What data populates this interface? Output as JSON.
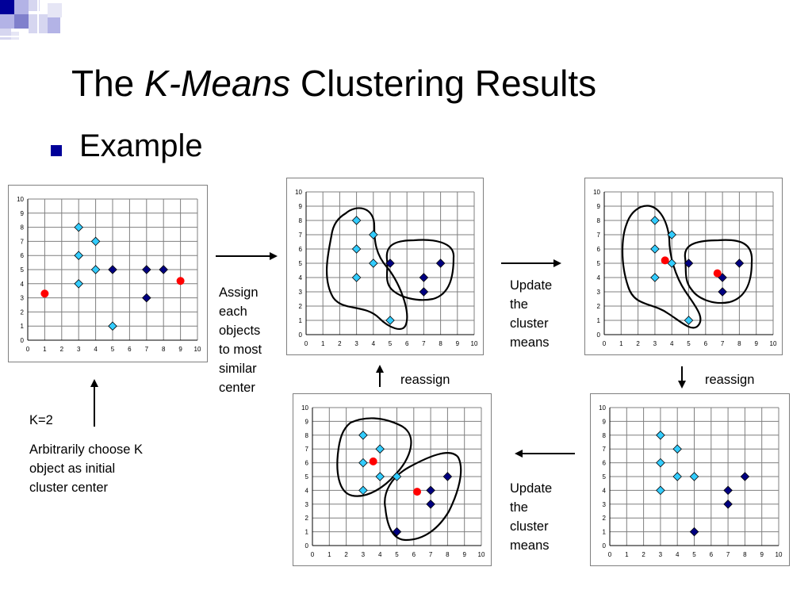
{
  "slide": {
    "title_prefix": "The ",
    "title_italic": "K-Means",
    "title_suffix": " Clustering Results",
    "bullet": "Example"
  },
  "labels": {
    "assign": [
      "Assign",
      "each",
      "objects",
      "to most",
      "similar",
      "center"
    ],
    "update1": [
      "Update",
      "the",
      "cluster",
      "means"
    ],
    "update2": [
      "Update",
      "the",
      "cluster",
      "means"
    ],
    "reassign1": "reassign",
    "reassign2": "reassign",
    "k": "K=2",
    "initial": [
      "Arbitrarily choose K",
      "object as initial",
      "cluster center"
    ]
  },
  "colors": {
    "cluster_a": "#33ccff",
    "cluster_b": "#000080",
    "center": "#ff0000",
    "bullet": "#000099"
  },
  "chart_data": [
    {
      "type": "scatter",
      "xlim": [
        0,
        10
      ],
      "ylim": [
        0,
        10
      ],
      "ticks": [
        0,
        1,
        2,
        3,
        4,
        5,
        6,
        7,
        8,
        9,
        10
      ],
      "grid": true,
      "points_a": [
        [
          3,
          8
        ],
        [
          3,
          6
        ],
        [
          3,
          4
        ],
        [
          4,
          7
        ],
        [
          4,
          5
        ],
        [
          5,
          1
        ]
      ],
      "points_b": [
        [
          5,
          5
        ],
        [
          7,
          5
        ],
        [
          7,
          3
        ],
        [
          8,
          5
        ]
      ],
      "centers": [
        [
          1,
          3.3
        ],
        [
          9,
          4.2
        ]
      ]
    },
    {
      "type": "scatter",
      "xlim": [
        0,
        10
      ],
      "ylim": [
        0,
        10
      ],
      "ticks": [
        0,
        1,
        2,
        3,
        4,
        5,
        6,
        7,
        8,
        9,
        10
      ],
      "grid": true,
      "points_a": [
        [
          3,
          8
        ],
        [
          3,
          6
        ],
        [
          3,
          4
        ],
        [
          4,
          7
        ],
        [
          4,
          5
        ],
        [
          5,
          1
        ]
      ],
      "points_b": [
        [
          5,
          5
        ],
        [
          7,
          4
        ],
        [
          7,
          3
        ],
        [
          8,
          5
        ]
      ],
      "centers": []
    },
    {
      "type": "scatter",
      "xlim": [
        0,
        10
      ],
      "ylim": [
        0,
        10
      ],
      "ticks": [
        0,
        1,
        2,
        3,
        4,
        5,
        6,
        7,
        8,
        9,
        10
      ],
      "grid": true,
      "points_a": [
        [
          3,
          8
        ],
        [
          3,
          6
        ],
        [
          3,
          4
        ],
        [
          4,
          7
        ],
        [
          4,
          5
        ],
        [
          5,
          1
        ]
      ],
      "points_b": [
        [
          5,
          5
        ],
        [
          7,
          4
        ],
        [
          7,
          3
        ],
        [
          8,
          5
        ]
      ],
      "centers": [
        [
          3.6,
          5.2
        ],
        [
          6.7,
          4.3
        ]
      ]
    },
    {
      "type": "scatter",
      "xlim": [
        0,
        10
      ],
      "ylim": [
        0,
        10
      ],
      "ticks": [
        0,
        1,
        2,
        3,
        4,
        5,
        6,
        7,
        8,
        9,
        10
      ],
      "grid": true,
      "points_a": [
        [
          3,
          8
        ],
        [
          3,
          6
        ],
        [
          3,
          4
        ],
        [
          4,
          7
        ],
        [
          4,
          5
        ],
        [
          5,
          5
        ]
      ],
      "points_b": [
        [
          5,
          1
        ],
        [
          7,
          4
        ],
        [
          7,
          3
        ],
        [
          8,
          5
        ]
      ],
      "centers": []
    },
    {
      "type": "scatter",
      "xlim": [
        0,
        10
      ],
      "ylim": [
        0,
        10
      ],
      "ticks": [
        0,
        1,
        2,
        3,
        4,
        5,
        6,
        7,
        8,
        9,
        10
      ],
      "grid": true,
      "points_a": [
        [
          3,
          8
        ],
        [
          3,
          6
        ],
        [
          3,
          4
        ],
        [
          4,
          7
        ],
        [
          4,
          5
        ],
        [
          5,
          5
        ]
      ],
      "points_b": [
        [
          5,
          1
        ],
        [
          7,
          4
        ],
        [
          7,
          3
        ],
        [
          8,
          5
        ]
      ],
      "centers": [
        [
          3.6,
          6.1
        ],
        [
          6.2,
          3.9
        ]
      ]
    }
  ]
}
